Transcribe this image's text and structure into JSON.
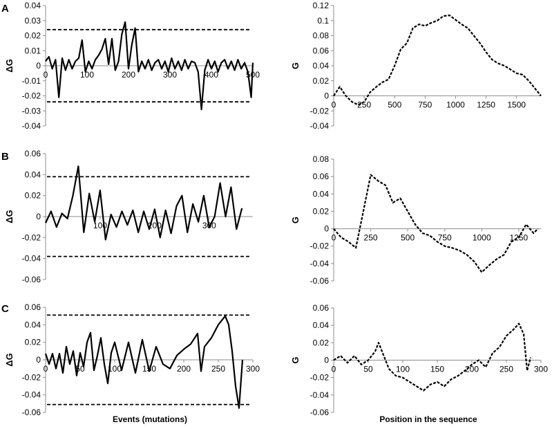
{
  "xlabel_left": "Events (mutations)",
  "xlabel_right": "Position in the sequence",
  "chart_data": [
    {
      "panel": "A",
      "type": "line",
      "ylabel": "ΔG",
      "xlim": [
        0,
        500
      ],
      "ylim": [
        -0.04,
        0.04
      ],
      "xticks": [
        0,
        100,
        200,
        300,
        400,
        500
      ],
      "yticks": [
        -0.04,
        -0.03,
        -0.02,
        -0.01,
        0,
        0.01,
        0.02,
        0.03,
        0.04
      ],
      "ytick_labels": [
        "-0.04",
        "-0.03",
        "-0.02",
        "-0.01",
        "0",
        "0.01",
        "0.02",
        "0.03",
        "0.04"
      ],
      "threshold": 0.024,
      "series": [
        {
          "style": "solid",
          "x": [
            0,
            8,
            16,
            24,
            32,
            40,
            48,
            56,
            64,
            72,
            80,
            88,
            96,
            104,
            112,
            120,
            128,
            136,
            144,
            152,
            160,
            168,
            176,
            184,
            192,
            200,
            208,
            216,
            224,
            232,
            240,
            248,
            256,
            264,
            272,
            280,
            288,
            296,
            304,
            312,
            320,
            328,
            336,
            344,
            352,
            360,
            368,
            376,
            384,
            392,
            400,
            408,
            416,
            424,
            432,
            440,
            448,
            456,
            464,
            472,
            480,
            488,
            496,
            500
          ],
          "y": [
            0.003,
            0.006,
            -0.002,
            0.004,
            -0.021,
            0.005,
            -0.003,
            0.004,
            -0.002,
            0.003,
            0.005,
            0.017,
            -0.004,
            0.003,
            -0.002,
            0.004,
            0.007,
            0.011,
            0.018,
            0.001,
            0.018,
            -0.003,
            0.003,
            0.021,
            0.029,
            -0.002,
            0.014,
            0.025,
            -0.004,
            0.003,
            -0.002,
            0.004,
            -0.003,
            0.002,
            0.004,
            -0.002,
            0.003,
            -0.004,
            0.005,
            -0.002,
            0.003,
            -0.003,
            0.004,
            -0.002,
            0.003,
            0.002,
            -0.004,
            -0.029,
            -0.003,
            0.004,
            -0.002,
            0.003,
            -0.004,
            0.002,
            0.004,
            -0.002,
            0.003,
            -0.003,
            0.004,
            -0.002,
            0.002,
            -0.004,
            -0.021,
            0.002
          ]
        }
      ]
    },
    {
      "panel": "A",
      "type": "line",
      "ylabel": "G",
      "xlim": [
        0,
        1700
      ],
      "ylim": [
        -0.04,
        0.12
      ],
      "xticks": [
        0,
        250,
        500,
        750,
        1000,
        1250,
        1500
      ],
      "yticks": [
        -0.04,
        -0.02,
        0,
        0.02,
        0.04,
        0.06,
        0.08,
        0.1,
        0.12
      ],
      "ytick_labels": [
        "-0.04",
        "-0.02",
        "0",
        "0.02",
        "0.04",
        "0.06",
        "0.08",
        "0.1",
        "0.12"
      ],
      "series": [
        {
          "style": "dashed",
          "x": [
            0,
            50,
            100,
            150,
            200,
            250,
            300,
            350,
            400,
            450,
            500,
            550,
            600,
            650,
            700,
            750,
            800,
            850,
            900,
            950,
            1000,
            1050,
            1100,
            1150,
            1200,
            1250,
            1300,
            1350,
            1400,
            1450,
            1500,
            1550,
            1600,
            1650,
            1700
          ],
          "y": [
            0.0,
            0.012,
            0.0,
            -0.008,
            -0.012,
            -0.008,
            0.005,
            0.012,
            0.018,
            0.022,
            0.04,
            0.062,
            0.07,
            0.09,
            0.095,
            0.093,
            0.097,
            0.1,
            0.106,
            0.107,
            0.101,
            0.095,
            0.09,
            0.08,
            0.07,
            0.058,
            0.048,
            0.043,
            0.04,
            0.035,
            0.03,
            0.028,
            0.02,
            0.01,
            0.0
          ]
        }
      ]
    },
    {
      "panel": "B",
      "type": "line",
      "ylabel": "ΔG",
      "xlim": [
        0,
        380
      ],
      "ylim": [
        -0.06,
        0.06
      ],
      "xticks": [
        100,
        200,
        300
      ],
      "yticks": [
        -0.06,
        -0.04,
        -0.02,
        0,
        0.02,
        0.04,
        0.06
      ],
      "ytick_labels": [
        "-0.06",
        "-0.04",
        "-0.02",
        "0",
        "0.02",
        "0.04",
        "0.06"
      ],
      "threshold": 0.038,
      "series": [
        {
          "style": "solid",
          "x": [
            0,
            10,
            20,
            30,
            40,
            50,
            60,
            70,
            80,
            90,
            100,
            110,
            120,
            130,
            140,
            150,
            160,
            170,
            180,
            190,
            200,
            210,
            220,
            230,
            240,
            250,
            260,
            270,
            280,
            290,
            300,
            310,
            320,
            330,
            340,
            350,
            360
          ],
          "y": [
            -0.006,
            0.005,
            -0.01,
            0.003,
            -0.002,
            0.02,
            0.048,
            -0.015,
            0.022,
            -0.005,
            0.025,
            -0.022,
            0.002,
            -0.01,
            0.005,
            -0.008,
            0.006,
            -0.015,
            0.005,
            -0.012,
            0.007,
            -0.02,
            0.006,
            -0.016,
            0.01,
            0.02,
            -0.015,
            0.012,
            -0.005,
            0.02,
            -0.01,
            0.0,
            0.032,
            0.0,
            0.028,
            -0.012,
            0.008
          ]
        }
      ]
    },
    {
      "panel": "B",
      "type": "line",
      "ylabel": "G",
      "xlim": [
        0,
        1400
      ],
      "ylim": [
        -0.06,
        0.08
      ],
      "xticks": [
        0,
        250,
        500,
        750,
        1000,
        1250
      ],
      "yticks": [
        -0.06,
        -0.04,
        -0.02,
        0,
        0.02,
        0.04,
        0.06,
        0.08
      ],
      "ytick_labels": [
        "-0.06",
        "-0.04",
        "-0.02",
        "0",
        "0.02",
        "0.04",
        "0.06",
        "0.08"
      ],
      "series": [
        {
          "style": "dashed",
          "x": [
            0,
            50,
            100,
            150,
            200,
            250,
            300,
            350,
            400,
            450,
            500,
            550,
            600,
            650,
            700,
            750,
            800,
            850,
            900,
            950,
            1000,
            1050,
            1100,
            1150,
            1200,
            1250,
            1300,
            1350,
            1380
          ],
          "y": [
            0.0,
            -0.01,
            -0.015,
            -0.022,
            0.02,
            0.062,
            0.055,
            0.05,
            0.03,
            0.035,
            0.02,
            0.005,
            -0.005,
            -0.008,
            -0.015,
            -0.02,
            -0.022,
            -0.025,
            -0.03,
            -0.038,
            -0.05,
            -0.042,
            -0.035,
            -0.03,
            -0.015,
            -0.01,
            0.005,
            -0.005,
            0.0
          ]
        }
      ]
    },
    {
      "panel": "C",
      "type": "line",
      "ylabel": "ΔG",
      "xlim": [
        0,
        300
      ],
      "ylim": [
        -0.06,
        0.06
      ],
      "xticks": [
        0,
        50,
        100,
        150,
        200,
        250,
        300
      ],
      "yticks": [
        -0.06,
        -0.04,
        -0.02,
        0,
        0.02,
        0.04,
        0.06
      ],
      "ytick_labels": [
        "-0.06",
        "-0.04",
        "-0.02",
        "0",
        "0.02",
        "0.04",
        "0.06"
      ],
      "threshold": 0.051,
      "series": [
        {
          "style": "solid",
          "x": [
            0,
            5,
            10,
            15,
            20,
            25,
            30,
            35,
            40,
            45,
            50,
            55,
            60,
            65,
            70,
            75,
            80,
            85,
            90,
            95,
            100,
            110,
            120,
            130,
            140,
            150,
            160,
            170,
            180,
            190,
            200,
            210,
            220,
            225,
            230,
            240,
            250,
            260,
            265,
            270,
            275,
            280,
            285
          ],
          "y": [
            0.007,
            -0.005,
            0.007,
            -0.01,
            0.007,
            -0.015,
            0.015,
            -0.005,
            0.01,
            -0.018,
            0.008,
            -0.008,
            0.02,
            0.031,
            -0.012,
            0.005,
            0.025,
            -0.005,
            -0.027,
            0.008,
            0.02,
            -0.012,
            0.02,
            -0.015,
            0.023,
            -0.013,
            0.015,
            -0.005,
            -0.01,
            0.005,
            0.012,
            0.018,
            0.03,
            -0.013,
            0.015,
            0.025,
            0.04,
            0.05,
            0.04,
            0.01,
            -0.03,
            -0.055,
            0.0
          ]
        }
      ]
    },
    {
      "panel": "C",
      "type": "line",
      "ylabel": "G",
      "xlim": [
        0,
        300
      ],
      "ylim": [
        -0.06,
        0.06
      ],
      "xticks": [
        0,
        50,
        100,
        150,
        200,
        250,
        300
      ],
      "yticks": [
        -0.06,
        -0.04,
        -0.02,
        0,
        0.02,
        0.04,
        0.06
      ],
      "ytick_labels": [
        "-0.06",
        "-0.04",
        "-0.02",
        "0",
        "0.02",
        "0.04",
        "0.06"
      ],
      "series": [
        {
          "style": "dashed",
          "x": [
            0,
            10,
            20,
            30,
            40,
            50,
            60,
            65,
            70,
            80,
            90,
            100,
            110,
            120,
            130,
            140,
            150,
            160,
            170,
            180,
            190,
            200,
            210,
            220,
            230,
            240,
            250,
            260,
            268,
            275,
            280,
            285
          ],
          "y": [
            0.0,
            0.005,
            -0.003,
            0.005,
            -0.005,
            0.0,
            0.01,
            0.02,
            0.01,
            -0.01,
            -0.018,
            -0.02,
            -0.025,
            -0.03,
            -0.035,
            -0.028,
            -0.025,
            -0.03,
            -0.022,
            -0.018,
            -0.012,
            -0.005,
            0.0,
            -0.008,
            0.008,
            0.015,
            0.028,
            0.035,
            0.042,
            0.03,
            -0.012,
            0.003
          ]
        }
      ]
    }
  ]
}
